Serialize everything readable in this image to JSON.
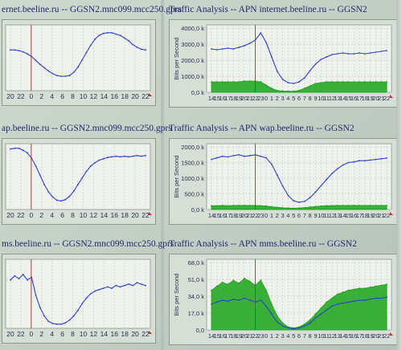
{
  "panels": [
    {
      "id": "p1",
      "title": "ernet.beeline.ru -- GGSN2.mnc099.mcc250.gprs",
      "chart_data": {
        "type": "line",
        "x_ticks": [
          "20",
          "22",
          "0",
          "2",
          "4",
          "6",
          "8",
          "10",
          "12",
          "14",
          "16",
          "18",
          "20",
          "22"
        ],
        "series": [
          {
            "color": "#2b43c9",
            "values": [
              0.62,
              0.62,
              0.61,
              0.59,
              0.56,
              0.52,
              0.46,
              0.4,
              0.35,
              0.3,
              0.26,
              0.23,
              0.22,
              0.22,
              0.23,
              0.28,
              0.36,
              0.47,
              0.58,
              0.69,
              0.78,
              0.84,
              0.87,
              0.88,
              0.88,
              0.86,
              0.84,
              0.8,
              0.76,
              0.7,
              0.66,
              0.63,
              0.62
            ]
          }
        ],
        "marker_x": "0"
      }
    },
    {
      "id": "p2",
      "title": "Traffic Analysis -- APN internet.beeline.ru -- GGSN2",
      "chart_data": {
        "type": "area",
        "ylabel": "Bits per Second",
        "y_ticks": [
          "0,0 k",
          "1000,0 k",
          "2000,0 k",
          "3000,0 k",
          "4000,0 k"
        ],
        "ylim": [
          0,
          4000
        ],
        "x_ticks": [
          "14",
          "15",
          "16",
          "17",
          "18",
          "19",
          "20",
          "21",
          "22",
          "23",
          "0",
          "1",
          "2",
          "3",
          "4",
          "5",
          "6",
          "7",
          "8",
          "9",
          "10",
          "11",
          "12",
          "13",
          "14",
          "15",
          "16",
          "17",
          "18",
          "19",
          "20",
          "21",
          "22"
        ],
        "series": [
          {
            "color": "#2b43c9",
            "values": [
              2700,
              2650,
              2700,
              2750,
              2700,
              2800,
              2900,
              3050,
              3250,
              3700,
              3100,
              2200,
              1300,
              800,
              600,
              550,
              650,
              900,
              1350,
              1750,
              2050,
              2200,
              2350,
              2400,
              2450,
              2400,
              2400,
              2450,
              2400,
              2450,
              2500,
              2550,
              2600
            ]
          },
          {
            "color": "#1aa31a",
            "fill": true,
            "values": [
              650,
              650,
              650,
              650,
              650,
              650,
              700,
              700,
              700,
              650,
              450,
              250,
              120,
              80,
              70,
              70,
              120,
              250,
              400,
              550,
              600,
              650,
              650,
              650,
              650,
              650,
              650,
              650,
              650,
              650,
              650,
              650,
              650
            ]
          }
        ],
        "marker_x": "22"
      }
    },
    {
      "id": "p3",
      "title": "ap.beeline.ru -- GGSN2.mnc099.mcc250.gprs",
      "chart_data": {
        "type": "line",
        "x_ticks": [
          "20",
          "22",
          "0",
          "2",
          "4",
          "6",
          "8",
          "10",
          "12",
          "14",
          "16",
          "18",
          "20",
          "22"
        ],
        "series": [
          {
            "color": "#2b43c9",
            "values": [
              0.92,
              0.93,
              0.93,
              0.9,
              0.86,
              0.78,
              0.66,
              0.52,
              0.38,
              0.27,
              0.19,
              0.14,
              0.13,
              0.15,
              0.2,
              0.28,
              0.38,
              0.48,
              0.58,
              0.66,
              0.71,
              0.75,
              0.77,
              0.79,
              0.8,
              0.81,
              0.8,
              0.81,
              0.8,
              0.81,
              0.82,
              0.81,
              0.82
            ]
          }
        ],
        "marker_x": "0"
      }
    },
    {
      "id": "p4",
      "title": "Traffic Analysis -- APN wap.beeline.ru -- GGSN2",
      "chart_data": {
        "type": "area",
        "ylabel": "Bits per Second",
        "y_ticks": [
          "0,0 k",
          "500,0 k",
          "1000,0 k",
          "1500,0 k",
          "2000,0 k"
        ],
        "ylim": [
          0,
          2000
        ],
        "x_ticks": [
          "14",
          "15",
          "16",
          "17",
          "18",
          "19",
          "20",
          "21",
          "22",
          "23",
          "0",
          "1",
          "2",
          "3",
          "4",
          "5",
          "6",
          "7",
          "8",
          "9",
          "10",
          "11",
          "12",
          "13",
          "14",
          "15",
          "16",
          "17",
          "18",
          "19",
          "20",
          "21",
          "22"
        ],
        "series": [
          {
            "color": "#2b43c9",
            "values": [
              1600,
              1650,
              1700,
              1680,
              1720,
              1750,
              1700,
              1720,
              1750,
              1700,
              1650,
              1450,
              1100,
              750,
              450,
              280,
              230,
              260,
              380,
              560,
              760,
              960,
              1150,
              1300,
              1420,
              1500,
              1520,
              1560,
              1560,
              1580,
              1600,
              1620,
              1640
            ]
          },
          {
            "color": "#1aa31a",
            "fill": true,
            "values": [
              120,
              120,
              130,
              120,
              130,
              130,
              130,
              130,
              130,
              120,
              110,
              90,
              70,
              55,
              45,
              40,
              45,
              60,
              80,
              95,
              110,
              120,
              125,
              130,
              130,
              130,
              130,
              130,
              130,
              130,
              130,
              130,
              130
            ]
          }
        ],
        "marker_x": "22"
      }
    },
    {
      "id": "p5",
      "title": "ms.beeline.ru -- GGSN2.mnc099.mcc250.gprs",
      "chart_data": {
        "type": "line",
        "x_ticks": [
          "20",
          "22",
          "0",
          "2",
          "4",
          "6",
          "8",
          "10",
          "12",
          "14",
          "16",
          "18",
          "20",
          "22"
        ],
        "series": [
          {
            "color": "#2b43c9",
            "values": [
              0.7,
              0.76,
              0.72,
              0.78,
              0.7,
              0.74,
              0.48,
              0.3,
              0.18,
              0.1,
              0.07,
              0.06,
              0.06,
              0.08,
              0.12,
              0.18,
              0.26,
              0.36,
              0.44,
              0.5,
              0.54,
              0.56,
              0.58,
              0.6,
              0.58,
              0.62,
              0.6,
              0.62,
              0.64,
              0.62,
              0.66,
              0.64,
              0.62
            ]
          }
        ],
        "marker_x": "0"
      }
    },
    {
      "id": "p6",
      "title": "Traffic Analysis -- APN mms.beeline.ru -- GGSN2",
      "chart_data": {
        "type": "area",
        "ylabel": "Bits per Second",
        "y_ticks": [
          "0,0",
          "17,0 k",
          "34,0 k",
          "51,0 k",
          "68,0 k"
        ],
        "ylim": [
          0,
          68
        ],
        "x_ticks": [
          "14",
          "15",
          "16",
          "17",
          "18",
          "19",
          "20",
          "21",
          "22",
          "23",
          "0",
          "1",
          "2",
          "3",
          "4",
          "5",
          "6",
          "7",
          "8",
          "9",
          "10",
          "11",
          "12",
          "13",
          "14",
          "15",
          "16",
          "17",
          "18",
          "19",
          "20",
          "21",
          "22"
        ],
        "series": [
          {
            "color": "#1aa31a",
            "fill": true,
            "values": [
              40,
              44,
              48,
              46,
              50,
              47,
              52,
              49,
              45,
              50,
              40,
              26,
              14,
              7,
              3,
              2,
              3,
              6,
              10,
              16,
              22,
              28,
              32,
              36,
              38,
              40,
              41,
              42,
              42,
              43,
              44,
              45,
              46
            ]
          },
          {
            "color": "#2b43c9",
            "values": [
              26,
              28,
              30,
              29,
              31,
              30,
              32,
              30,
              28,
              30,
              24,
              16,
              8,
              4,
              2,
              1,
              2,
              4,
              7,
              12,
              16,
              20,
              24,
              26,
              27,
              28,
              29,
              30,
              30,
              31,
              32,
              32,
              33
            ]
          }
        ],
        "marker_x": "22"
      }
    }
  ]
}
